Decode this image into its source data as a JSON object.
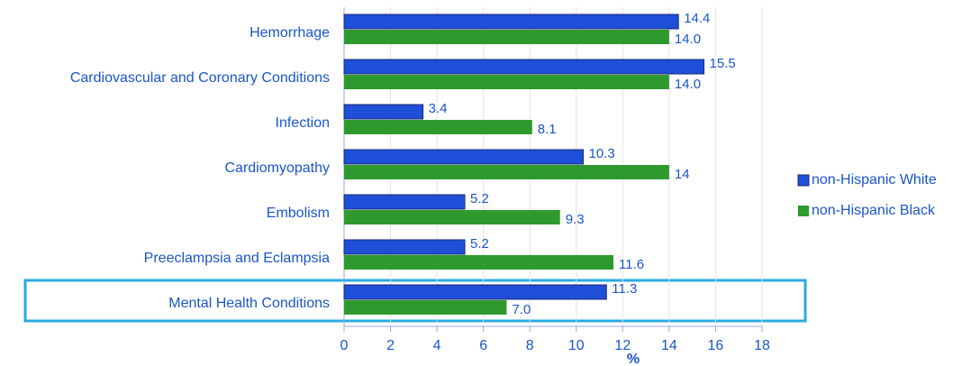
{
  "chart_data": {
    "type": "hbar",
    "x_label": "%",
    "categories": [
      "Hemorrhage",
      "Cardiovascular and Coronary Conditions",
      "Infection",
      "Cardiomyopathy",
      "Embolism",
      "Preeclampsia and Eclampsia",
      "Mental Health Conditions"
    ],
    "series": [
      {
        "name": "non-Hispanic White",
        "color": "#1f4fd8",
        "values": [
          14.4,
          15.5,
          3.4,
          10.3,
          5.2,
          5.2,
          11.3
        ]
      },
      {
        "name": "non-Hispanic Black",
        "color": "#2e9a2e",
        "values": [
          14.0,
          14.0,
          8.1,
          14,
          9.3,
          11.6,
          7.0
        ],
        "value_labels": [
          "14.0",
          "14.0",
          "8.1",
          "14",
          "9.3",
          "11.6",
          "7.0"
        ]
      }
    ],
    "xlim": [
      0,
      18
    ],
    "xticks": [
      0,
      2,
      4,
      6,
      8,
      10,
      12,
      14,
      16,
      18
    ],
    "grid": true,
    "legend": "right"
  }
}
